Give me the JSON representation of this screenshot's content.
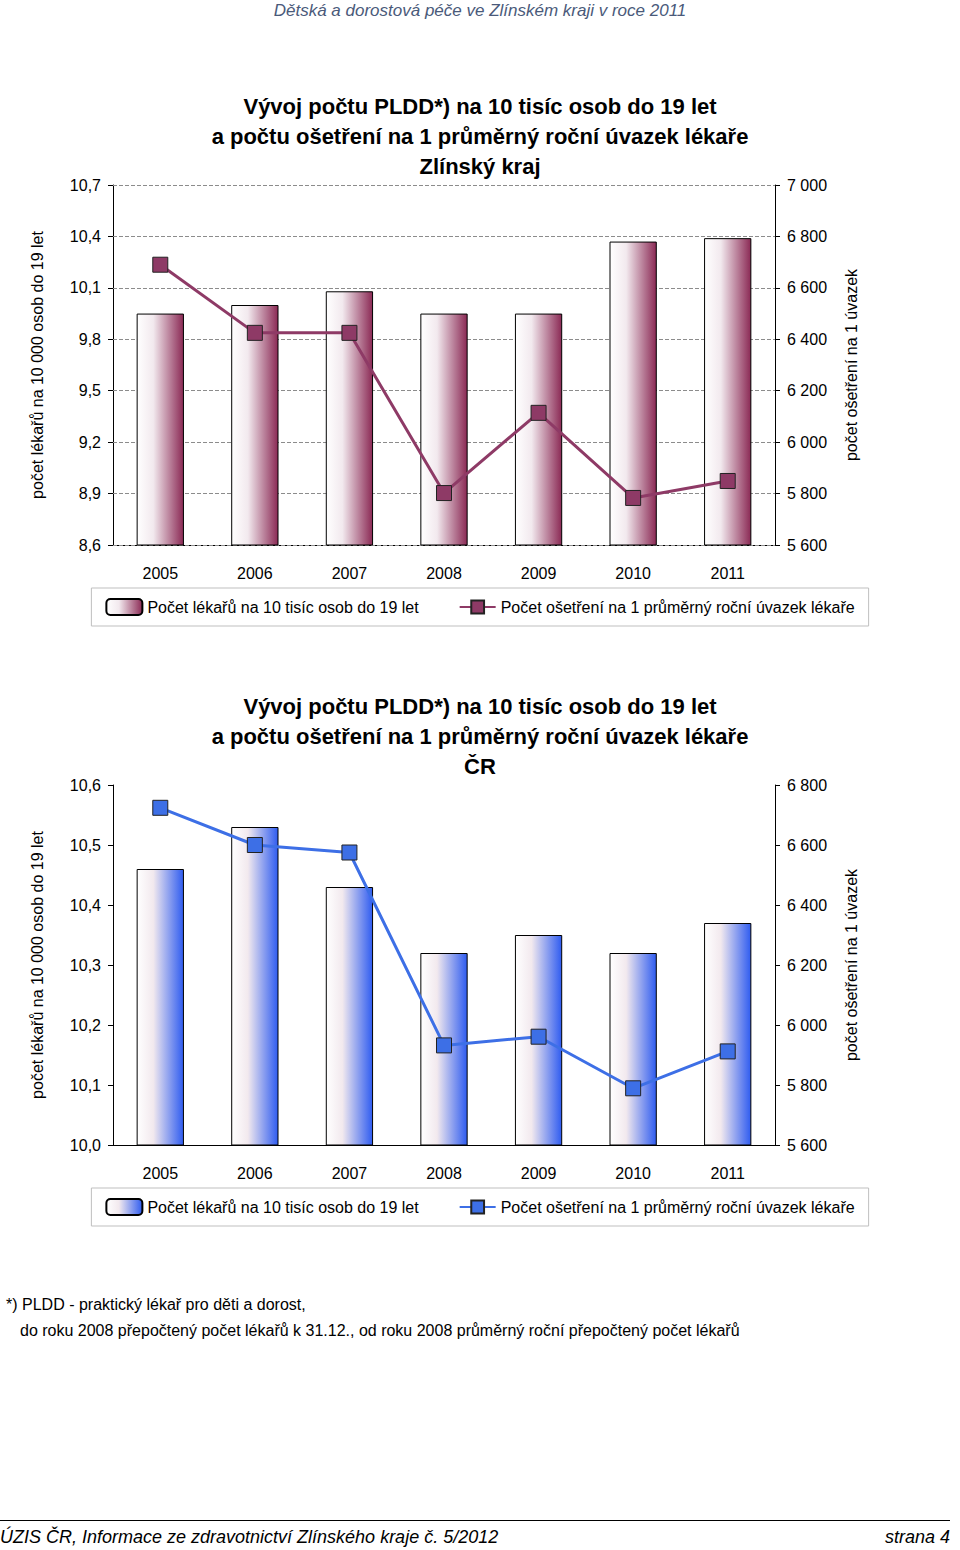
{
  "header": "Dětská a dorostová péče ve Zlínském kraji v roce 2011",
  "chart_data": [
    {
      "type": "bar",
      "title": "Vývoj počtu PLDD*) na 10 tisíc osob do 19 let\na počtu ošetření na 1 průměrný roční úvazek lékaře\nZlínský kraj",
      "categories": [
        "2005",
        "2006",
        "2007",
        "2008",
        "2009",
        "2010",
        "2011"
      ],
      "series": [
        {
          "name": "Počet lékařů na 10 tisíc osob do 19 let",
          "type": "bar",
          "color": "#8b2a55",
          "values": [
            9.95,
            10.0,
            10.08,
            9.95,
            9.95,
            10.37,
            10.39
          ]
        },
        {
          "name": "Počet ošetření na 1 průměrný roční úvazek lékaře",
          "type": "line",
          "axis": "y2",
          "color": "#8e3a66",
          "marker": "square",
          "values": [
            6690,
            6425,
            6425,
            5802,
            6114,
            5783,
            5849
          ]
        }
      ],
      "ylabel": "počet lékařů na 10 000 osob do 19 let",
      "y2label": "počet ošetření na 1 úvazek",
      "ylim": [
        8.6,
        10.7
      ],
      "yticks": [
        {
          "value": 8.6,
          "label": "8,6"
        },
        {
          "value": 8.9,
          "label": "8,9"
        },
        {
          "value": 9.2,
          "label": "9,2"
        },
        {
          "value": 9.5,
          "label": "9,5"
        },
        {
          "value": 9.8,
          "label": "9,8"
        },
        {
          "value": 10.1,
          "label": "10,1"
        },
        {
          "value": 10.4,
          "label": "10,4"
        },
        {
          "value": 10.7,
          "label": "10,7"
        }
      ],
      "y2lim": [
        5600,
        7000
      ],
      "y2ticks": [
        {
          "value": 5600,
          "label": "5 600"
        },
        {
          "value": 5800,
          "label": "5 800"
        },
        {
          "value": 6000,
          "label": "6 000"
        },
        {
          "value": 6200,
          "label": "6 200"
        },
        {
          "value": 6400,
          "label": "6 400"
        },
        {
          "value": 6600,
          "label": "6 600"
        },
        {
          "value": 6800,
          "label": "6 800"
        },
        {
          "value": 7000,
          "label": "7 000"
        }
      ],
      "grid": true,
      "legend": "bottom"
    },
    {
      "type": "bar",
      "title": "Vývoj počtu PLDD*) na 10 tisíc osob do 19 let\na počtu ošetření na 1 průměrný roční úvazek lékaře\nČR",
      "categories": [
        "2005",
        "2006",
        "2007",
        "2008",
        "2009",
        "2010",
        "2011"
      ],
      "series": [
        {
          "name": "Počet lékařů na 10 tisíc osob do 19 let",
          "type": "bar",
          "color": "#2f5cf0",
          "values": [
            10.46,
            10.53,
            10.43,
            10.32,
            10.35,
            10.32,
            10.37
          ]
        },
        {
          "name": "Počet ošetření na 1 průměrný roční úvazek lékaře",
          "type": "line",
          "axis": "y2",
          "color": "#3d6fe6",
          "marker": "square",
          "values": [
            6724,
            6600,
            6575,
            5932,
            5961,
            5789,
            5912
          ]
        }
      ],
      "ylabel": "počet lékařů na 10 000 osob do 19 let",
      "y2label": "počet ošetření na 1 úvazek",
      "ylim": [
        10.0,
        10.6
      ],
      "yticks": [
        {
          "value": 10.0,
          "label": "10,0"
        },
        {
          "value": 10.1,
          "label": "10,1"
        },
        {
          "value": 10.2,
          "label": "10,2"
        },
        {
          "value": 10.3,
          "label": "10,3"
        },
        {
          "value": 10.4,
          "label": "10,4"
        },
        {
          "value": 10.5,
          "label": "10,5"
        },
        {
          "value": 10.6,
          "label": "10,6"
        }
      ],
      "y2lim": [
        5600,
        6800
      ],
      "y2ticks": [
        {
          "value": 5600,
          "label": "5 600"
        },
        {
          "value": 5800,
          "label": "5 800"
        },
        {
          "value": 6000,
          "label": "6 000"
        },
        {
          "value": 6200,
          "label": "6 200"
        },
        {
          "value": 6400,
          "label": "6 400"
        },
        {
          "value": 6600,
          "label": "6 600"
        },
        {
          "value": 6800,
          "label": "6 800"
        }
      ],
      "grid": false,
      "legend": "bottom"
    }
  ],
  "footnote": [
    "*) PLDD - praktický lékař pro děti a dorost,",
    "do roku 2008 přepočtený počet lékařů k 31.12., od roku 2008 průměrný roční přepočtený počet lékařů"
  ],
  "footer": {
    "source": "ÚZIS ČR, Informace ze zdravotnictví Zlínského kraje č. 5/2012",
    "page": "strana 4"
  }
}
